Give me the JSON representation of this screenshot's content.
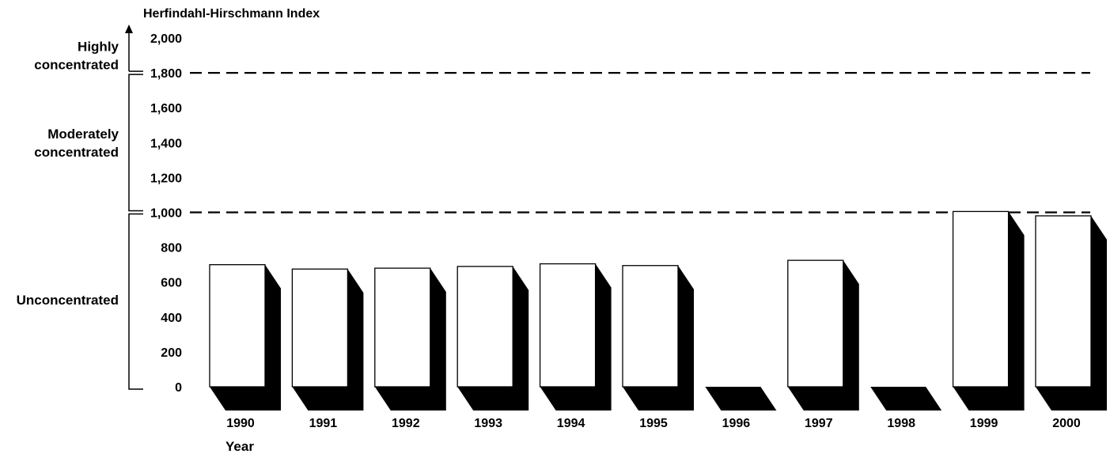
{
  "chart_data": {
    "type": "bar",
    "title": "",
    "ylabel": "Herfindahl-Hirschmann Index",
    "xlabel": "Year",
    "categories": [
      "1990",
      "1991",
      "1992",
      "1993",
      "1994",
      "1995",
      "1996",
      "1997",
      "1998",
      "1999",
      "2000"
    ],
    "values": [
      700,
      675,
      680,
      690,
      705,
      695,
      0,
      725,
      0,
      1005,
      980
    ],
    "ylim": [
      0,
      2000
    ],
    "yticks": [
      0,
      200,
      400,
      600,
      800,
      1000,
      1200,
      1400,
      1600,
      1800,
      2000
    ],
    "ytick_labels": [
      "0",
      "200",
      "400",
      "600",
      "800",
      "1,000",
      "1,200",
      "1,400",
      "1,600",
      "1,800",
      "2,000"
    ],
    "grid": false,
    "style": "3d-shadow",
    "thresholds": [
      {
        "value": 1000,
        "style": "dashed"
      },
      {
        "value": 1800,
        "style": "dashed"
      }
    ],
    "regions": [
      {
        "label_lines": [
          "Highly",
          "concentrated"
        ],
        "from": 1800,
        "to": 2000
      },
      {
        "label_lines": [
          "Moderately",
          "concentrated"
        ],
        "from": 1000,
        "to": 1800
      },
      {
        "label_lines": [
          "Unconcentrated"
        ],
        "from": 0,
        "to": 1000
      }
    ],
    "colors": {
      "bar_face": "#ffffff",
      "bar_shadow": "#000000",
      "line": "#000000"
    }
  }
}
